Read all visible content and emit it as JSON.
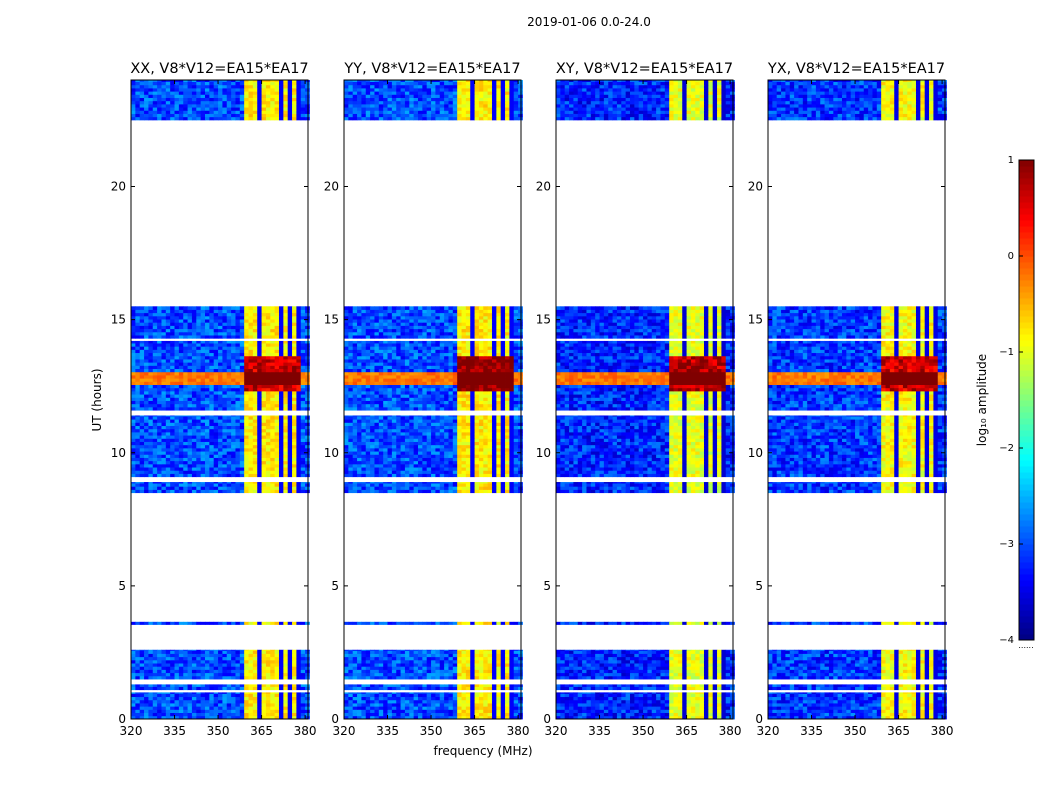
{
  "chart_data": {
    "type": "heatmap",
    "suptitle": "2019-01-06 0.0-24.0",
    "xlabel": "frequency (MHz)",
    "ylabel": "UT (hours)",
    "xlim": [
      320,
      381
    ],
    "ylim": [
      0,
      24
    ],
    "xticks": [
      "320",
      "335",
      "350",
      "365",
      "380"
    ],
    "yticks": [
      "0",
      "5",
      "10",
      "15",
      "20"
    ],
    "panels": [
      {
        "title": "XX, V8*V12=EA15*EA17",
        "band_level": -0.8,
        "burst_level": 0.6,
        "bg_level": -3.0
      },
      {
        "title": "YY, V8*V12=EA15*EA17",
        "band_level": -0.8,
        "burst_level": 0.9,
        "bg_level": -3.0
      },
      {
        "title": "XY, V8*V12=EA15*EA17",
        "band_level": -1.0,
        "burst_level": 0.7,
        "bg_level": -3.2
      },
      {
        "title": "YX, V8*V12=EA15*EA17",
        "band_level": -0.9,
        "burst_level": 0.6,
        "bg_level": -3.1
      }
    ],
    "data_time_ranges_hours": [
      [
        0,
        1.0
      ],
      [
        1.1,
        1.3
      ],
      [
        1.5,
        2.6
      ],
      [
        3.55,
        3.65
      ],
      [
        8.5,
        8.9
      ],
      [
        9.1,
        11.4
      ],
      [
        11.6,
        14.2
      ],
      [
        14.3,
        15.5
      ],
      [
        22.5,
        24
      ]
    ],
    "rfi_band_edges_mhz": [
      [
        359,
        364
      ],
      [
        364,
        368
      ],
      [
        368,
        372
      ],
      [
        372,
        375
      ],
      [
        375,
        378
      ]
    ],
    "burst_time_hours": [
      12.2,
      13.6
    ],
    "colorbar": {
      "label": "log₁₀ amplitude",
      "colormap": "jet",
      "range": [
        -4,
        1
      ],
      "ticks": [
        "1",
        "0",
        "−1",
        "−2",
        "−3",
        "−4"
      ],
      "extra_label": "......"
    }
  }
}
